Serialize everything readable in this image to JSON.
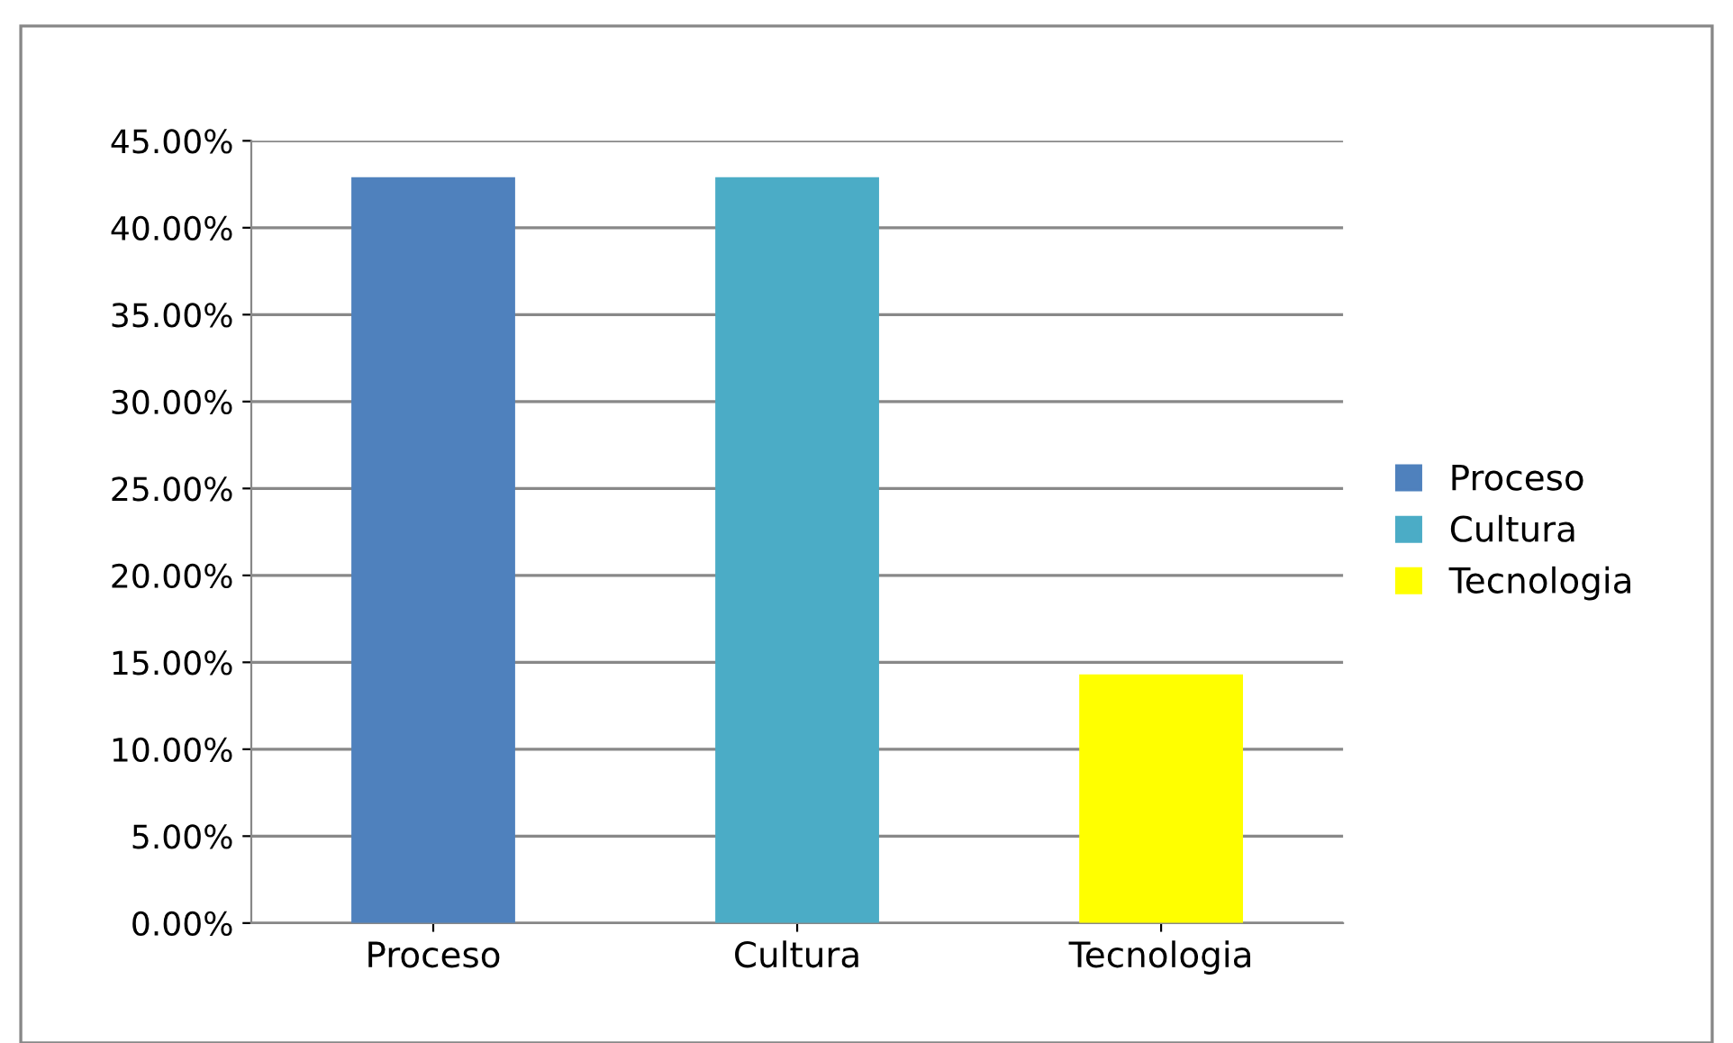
{
  "chart_data": {
    "type": "bar",
    "categories": [
      "Proceso",
      "Cultura",
      "Tecnologia"
    ],
    "series": [
      {
        "name": "Proceso",
        "color": "#4f81bd",
        "values": [
          42.9,
          null,
          null
        ]
      },
      {
        "name": "Cultura",
        "color": "#4bacc6",
        "values": [
          null,
          42.9,
          null
        ]
      },
      {
        "name": "Tecnologia",
        "color": "#ffff00",
        "values": [
          null,
          null,
          14.3
        ]
      }
    ],
    "ylim": [
      0,
      45
    ],
    "yticks": [
      {
        "value": 0,
        "label": "0.00%"
      },
      {
        "value": 5,
        "label": "5.00%"
      },
      {
        "value": 10,
        "label": "10.00%"
      },
      {
        "value": 15,
        "label": "15.00%"
      },
      {
        "value": 20,
        "label": "20.00%"
      },
      {
        "value": 25,
        "label": "25.00%"
      },
      {
        "value": 30,
        "label": "30.00%"
      },
      {
        "value": 35,
        "label": "35.00%"
      },
      {
        "value": 40,
        "label": "40.00%"
      },
      {
        "value": 45,
        "label": "45.00%"
      }
    ],
    "grid": "y",
    "legend": "right"
  }
}
